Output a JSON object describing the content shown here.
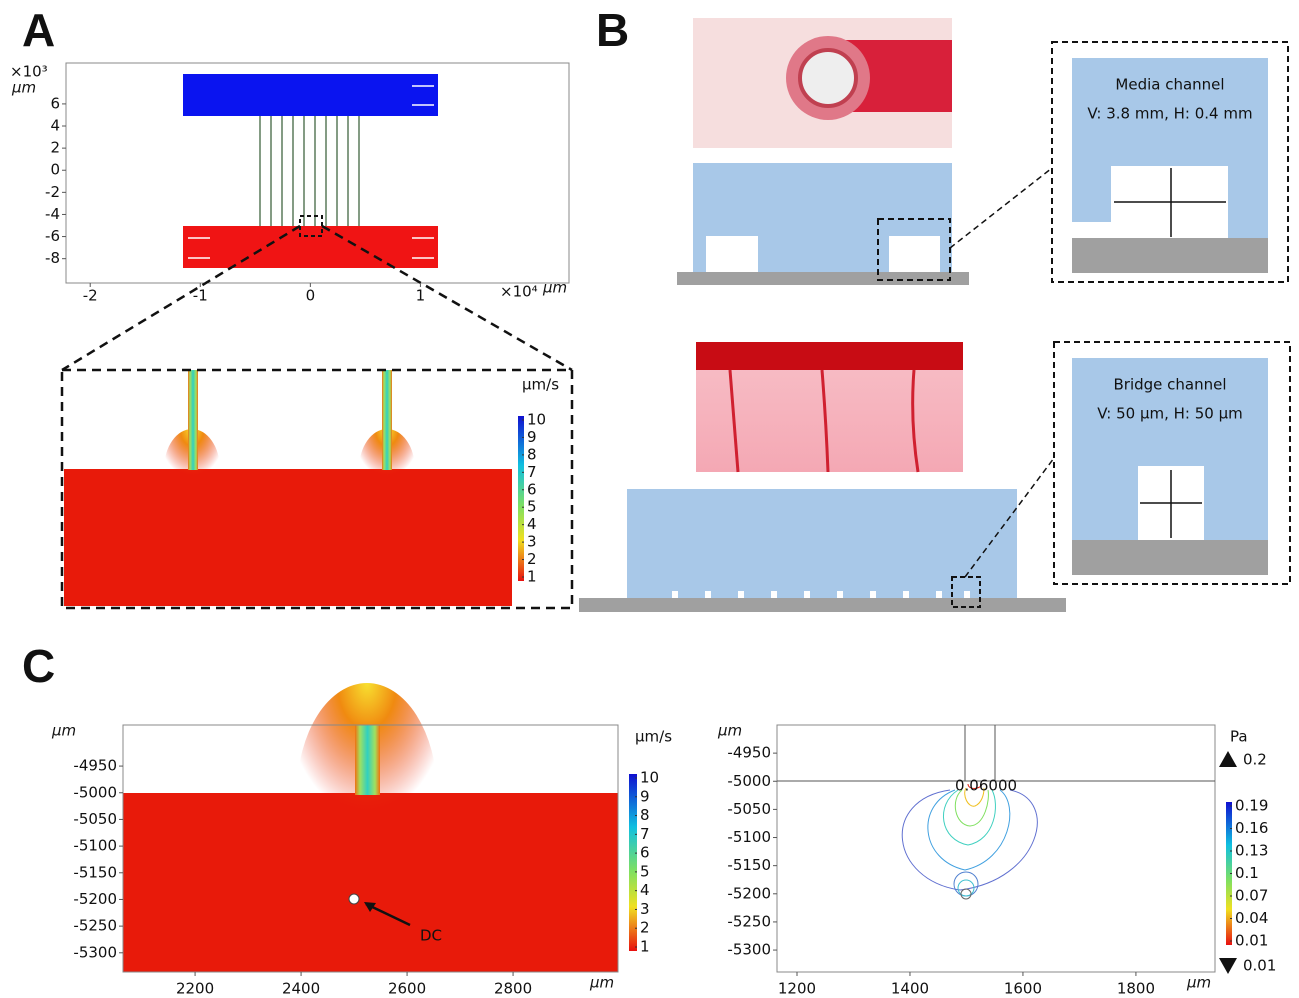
{
  "panel_a": {
    "label": "A",
    "x_unit": "×10⁴",
    "x_unit_um": "µm",
    "y_unit": "×10³",
    "y_unit_um": "µm",
    "xlim": [
      -2.22,
      2.35
    ],
    "xticks": [
      -2,
      -1,
      0,
      1
    ],
    "ylim": [
      -10.2,
      9.7
    ],
    "yticks": [
      6,
      4,
      2,
      0,
      -2,
      -4,
      -6,
      -8
    ],
    "zoom": {
      "colorbar_unit": "µm/s",
      "colorbar_ticks": [
        10,
        9,
        8,
        7,
        6,
        5,
        4,
        3,
        2,
        1
      ]
    }
  },
  "panel_b": {
    "label": "B",
    "media_channel": {
      "title": "Media channel",
      "dims": "V: 3.8 mm, H: 0.4 mm"
    },
    "bridge_channel": {
      "title": "Bridge channel",
      "dims": "V: 50 µm, H: 50 µm"
    }
  },
  "panel_c": {
    "label": "C",
    "left": {
      "x_unit": "µm",
      "y_unit": "µm",
      "xlim": [
        2064,
        2998
      ],
      "xticks": [
        2200,
        2400,
        2600,
        2800
      ],
      "ylim": [
        -5336,
        -4873
      ],
      "yticks": [
        -4950,
        -5000,
        -5050,
        -5100,
        -5150,
        -5200,
        -5250,
        -5300
      ],
      "colorbar_unit": "µm/s",
      "colorbar_ticks": [
        10,
        9,
        8,
        7,
        6,
        5,
        4,
        3,
        2,
        1
      ],
      "annotation": "DC"
    },
    "right": {
      "x_unit": "µm",
      "y_unit": "µm",
      "xlim": [
        1164.6,
        1940
      ],
      "xticks": [
        1200,
        1400,
        1600,
        1800
      ],
      "ylim": [
        -5339,
        -4900
      ],
      "yticks": [
        -4950,
        -5000,
        -5050,
        -5100,
        -5150,
        -5200,
        -5250,
        -5300
      ],
      "colorbar_unit": "Pa",
      "colorbar_ticks": [
        0.19,
        0.16,
        0.13,
        0.1,
        0.07,
        0.04,
        0.01
      ],
      "colorbar_max": 0.2,
      "colorbar_min": 0.01,
      "contour_label": "0.06000"
    }
  }
}
